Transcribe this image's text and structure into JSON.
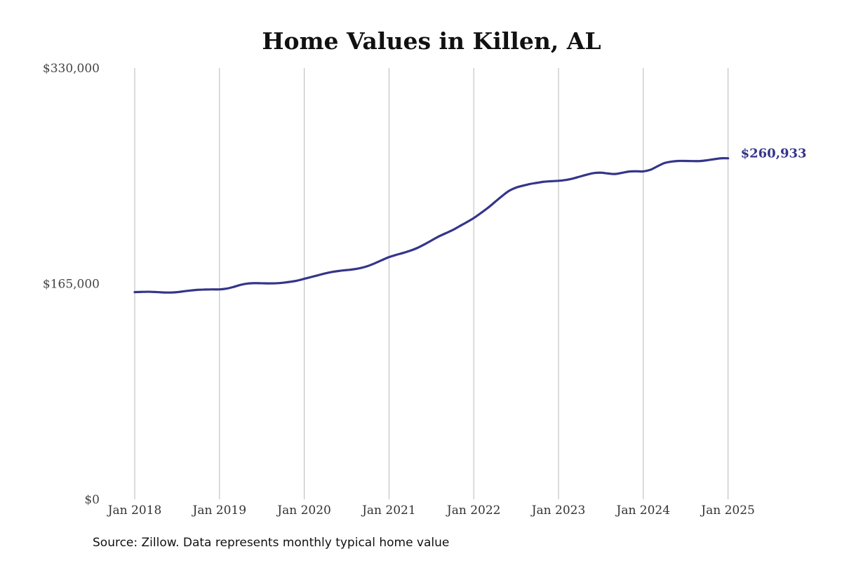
{
  "chart_data": {
    "type": "line",
    "title": "Home Values in Killen, AL",
    "xlabel": "",
    "ylabel": "",
    "ylim": [
      0,
      330000
    ],
    "yticks": [
      {
        "value": 0,
        "label": "$0"
      },
      {
        "value": 165000,
        "label": "$165,000"
      },
      {
        "value": 330000,
        "label": "$330,000"
      }
    ],
    "xticks": [
      "Jan 2018",
      "Jan 2019",
      "Jan 2020",
      "Jan 2021",
      "Jan 2022",
      "Jan 2023",
      "Jan 2024",
      "Jan 2025"
    ],
    "grid": "vertical",
    "line_color": "#35358a",
    "series": [
      {
        "x": [
          "2018-01",
          "2018-02",
          "2018-03",
          "2018-04",
          "2018-05",
          "2018-06",
          "2018-07",
          "2018-08",
          "2018-09",
          "2018-10",
          "2018-11",
          "2018-12",
          "2019-01",
          "2019-02",
          "2019-03",
          "2019-04",
          "2019-05",
          "2019-06",
          "2019-07",
          "2019-08",
          "2019-09",
          "2019-10",
          "2019-11",
          "2019-12",
          "2020-01",
          "2020-02",
          "2020-03",
          "2020-04",
          "2020-05",
          "2020-06",
          "2020-07",
          "2020-08",
          "2020-09",
          "2020-10",
          "2020-11",
          "2020-12",
          "2021-01",
          "2021-02",
          "2021-03",
          "2021-04",
          "2021-05",
          "2021-06",
          "2021-07",
          "2021-08",
          "2021-09",
          "2021-10",
          "2021-11",
          "2021-12",
          "2022-01",
          "2022-02",
          "2022-03",
          "2022-04",
          "2022-05",
          "2022-06",
          "2022-07",
          "2022-08",
          "2022-09",
          "2022-10",
          "2022-11",
          "2022-12",
          "2023-01",
          "2023-02",
          "2023-03",
          "2023-04",
          "2023-05",
          "2023-06",
          "2023-07",
          "2023-08",
          "2023-09",
          "2023-10",
          "2023-11",
          "2023-12",
          "2024-01",
          "2024-02",
          "2024-03",
          "2024-04",
          "2024-05",
          "2024-06",
          "2024-07",
          "2024-08",
          "2024-09",
          "2024-10",
          "2024-11",
          "2024-12",
          "2025-01"
        ],
        "values": [
          158500,
          158700,
          158800,
          158600,
          158300,
          158200,
          158500,
          159200,
          159800,
          160300,
          160500,
          160600,
          160600,
          161200,
          162500,
          164100,
          165100,
          165400,
          165300,
          165200,
          165300,
          165700,
          166400,
          167300,
          168700,
          170100,
          171500,
          172900,
          174000,
          174800,
          175400,
          176000,
          177000,
          178500,
          180600,
          183000,
          185300,
          187000,
          188500,
          190200,
          192300,
          195000,
          198000,
          201000,
          203500,
          206000,
          209000,
          212000,
          215200,
          219000,
          223000,
          227500,
          232000,
          236000,
          238500,
          240000,
          241300,
          242200,
          243000,
          243400,
          243700,
          244300,
          245400,
          246900,
          248400,
          249600,
          249900,
          249300,
          248900,
          249800,
          250800,
          251000,
          250900,
          252100,
          254800,
          257300,
          258400,
          258900,
          258900,
          258800,
          258800,
          259400,
          260200,
          260933,
          260933
        ],
        "end_label": "$260,933"
      }
    ]
  },
  "source": "Source: Zillow. Data represents monthly typical home value"
}
